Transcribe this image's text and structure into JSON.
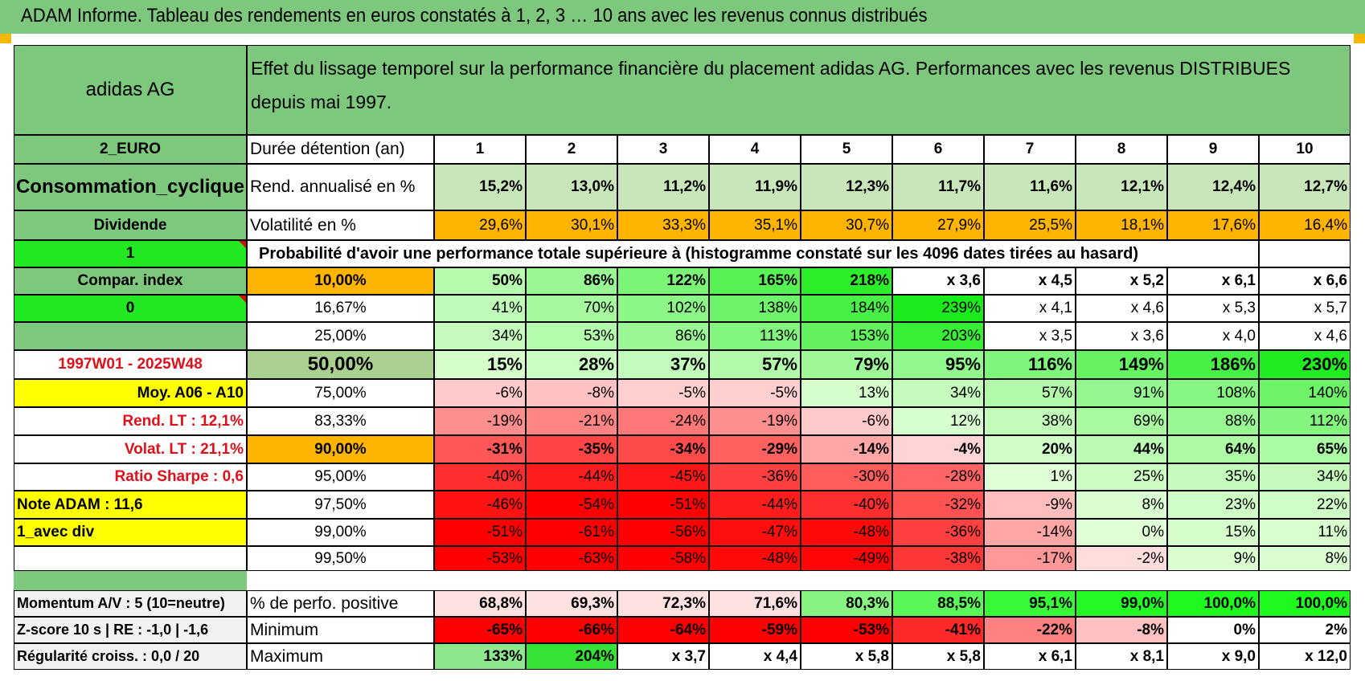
{
  "banner": {
    "title": "ADAM Informe. Tableau des rendements en euros constatés à 1, 2, 3 … 10 ans avec les revenus connus distribués"
  },
  "header": {
    "name": "adidas AG",
    "description": "Effet du lissage temporel sur la performance financière du placement adidas AG. Performances avec les revenus DISTRIBUES depuis mai 1997."
  },
  "left_panel": [
    "2_EURO",
    "Consommation_cyclique",
    "Dividende",
    "1",
    "Compar. index",
    "0",
    "",
    "1997W01 - 2025W48",
    "Moy. A06 - A10",
    "Rend. LT :    12,1%",
    "Volat. LT :    21,1%",
    "Ratio Sharpe :     0,6",
    "Note ADAM : 11,6",
    "1_avec div",
    ""
  ],
  "durations_label": "Durée détention (an)",
  "durations": [
    "1",
    "2",
    "3",
    "4",
    "5",
    "6",
    "7",
    "8",
    "9",
    "10"
  ],
  "return_row": {
    "label": "Rend. annualisé en %",
    "values": [
      "15,2%",
      "13,0%",
      "11,2%",
      "11,9%",
      "12,3%",
      "11,7%",
      "11,6%",
      "12,1%",
      "12,4%",
      "12,7%"
    ]
  },
  "volatility_row": {
    "label": "Volatilité en %",
    "values": [
      "29,6%",
      "30,1%",
      "33,3%",
      "35,1%",
      "30,7%",
      "27,9%",
      "25,5%",
      "18,1%",
      "17,6%",
      "16,4%"
    ]
  },
  "probability_title": "Probabilité d'avoir une performance totale supérieure à (histogramme constaté sur les 4096 dates tirées au hasard)",
  "probability_rows": [
    {
      "p": "10,00%",
      "values": [
        "50%",
        "86%",
        "122%",
        "165%",
        "218%",
        "x 3,6",
        "x 4,5",
        "x 5,2",
        "x 6,1",
        "x 6,6"
      ]
    },
    {
      "p": "16,67%",
      "values": [
        "41%",
        "70%",
        "102%",
        "138%",
        "184%",
        "239%",
        "x 4,1",
        "x 4,6",
        "x 5,3",
        "x 5,7"
      ]
    },
    {
      "p": "25,00%",
      "values": [
        "34%",
        "53%",
        "86%",
        "113%",
        "153%",
        "203%",
        "x 3,5",
        "x 3,6",
        "x 4,0",
        "x 4,6"
      ]
    },
    {
      "p": "50,00%",
      "values": [
        "15%",
        "28%",
        "37%",
        "57%",
        "79%",
        "95%",
        "116%",
        "149%",
        "186%",
        "230%"
      ]
    },
    {
      "p": "75,00%",
      "values": [
        "-6%",
        "-8%",
        "-5%",
        "-5%",
        "13%",
        "34%",
        "57%",
        "91%",
        "108%",
        "140%"
      ]
    },
    {
      "p": "83,33%",
      "values": [
        "-19%",
        "-21%",
        "-24%",
        "-19%",
        "-6%",
        "12%",
        "38%",
        "69%",
        "88%",
        "112%"
      ]
    },
    {
      "p": "90,00%",
      "values": [
        "-31%",
        "-35%",
        "-34%",
        "-29%",
        "-14%",
        "-4%",
        "20%",
        "44%",
        "64%",
        "65%"
      ]
    },
    {
      "p": "95,00%",
      "values": [
        "-40%",
        "-44%",
        "-45%",
        "-36%",
        "-30%",
        "-28%",
        "1%",
        "25%",
        "35%",
        "34%"
      ]
    },
    {
      "p": "97,50%",
      "values": [
        "-46%",
        "-54%",
        "-51%",
        "-44%",
        "-40%",
        "-32%",
        "-9%",
        "8%",
        "23%",
        "22%"
      ]
    },
    {
      "p": "99,00%",
      "values": [
        "-51%",
        "-61%",
        "-56%",
        "-47%",
        "-48%",
        "-36%",
        "-14%",
        "0%",
        "15%",
        "11%"
      ]
    },
    {
      "p": "99,50%",
      "values": [
        "-53%",
        "-63%",
        "-58%",
        "-48%",
        "-49%",
        "-38%",
        "-17%",
        "-2%",
        "9%",
        "8%"
      ]
    }
  ],
  "summary": [
    {
      "left": "Momentum A/V : 5 (10=neutre)",
      "label": "% de perfo. positive",
      "values": [
        "68,8%",
        "69,3%",
        "72,3%",
        "71,6%",
        "80,3%",
        "88,5%",
        "95,1%",
        "99,0%",
        "100,0%",
        "100,0%"
      ]
    },
    {
      "left": "Z-score 10 s | RE : -1,0 | -1,6",
      "label": "Minimum",
      "values": [
        "-65%",
        "-66%",
        "-64%",
        "-59%",
        "-53%",
        "-41%",
        "-22%",
        "-8%",
        "0%",
        "2%"
      ]
    },
    {
      "left": "Régularité croiss. : 0,0 / 20",
      "label": "Maximum",
      "values": [
        "133%",
        "204%",
        "x 3,7",
        "x 4,4",
        "x 5,8",
        "x 5,8",
        "x 6,1",
        "x 8,1",
        "x 9,0",
        "x 12,0"
      ]
    }
  ],
  "colors": {
    "header_green": "#7ec87e",
    "bright_green": "#22e822",
    "yellow": "#ffff00",
    "orange": "#ffb400",
    "olive_green": "#a9d08e",
    "red_text": "#e0101a",
    "label_grey": "#f2f2f2"
  }
}
